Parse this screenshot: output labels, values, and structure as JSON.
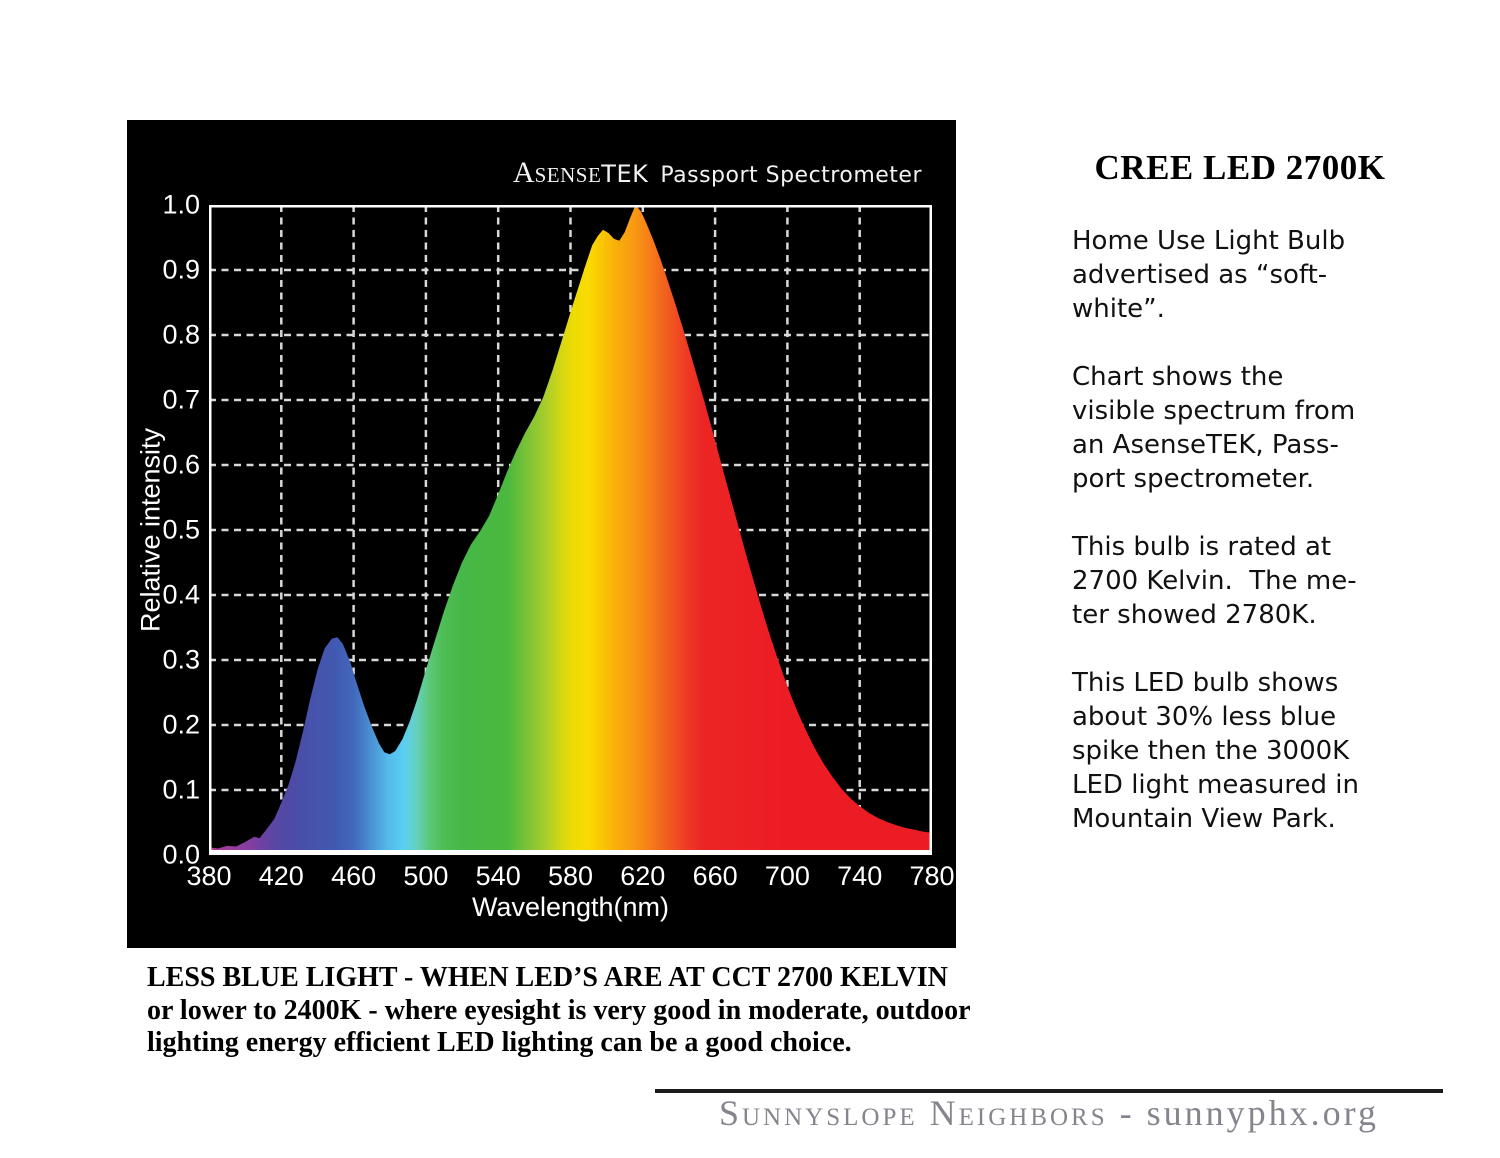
{
  "page": {
    "background": "#ffffff"
  },
  "chart": {
    "panel_bg": "#000000",
    "title": {
      "brand_initial": "A",
      "brand_smallcaps": "SENSE",
      "brand_suffix": "TEK",
      "product": "Passport Spectrometer"
    },
    "axes": {
      "ylabel": "Relative intensity",
      "xlabel": "Wavelength(nm)",
      "y_ticks": [
        "1.0",
        "0.9",
        "0.8",
        "0.7",
        "0.6",
        "0.5",
        "0.4",
        "0.3",
        "0.2",
        "0.1",
        "0.0"
      ],
      "x_ticks": [
        "380",
        "420",
        "460",
        "500",
        "540",
        "580",
        "620",
        "660",
        "700",
        "740",
        "780"
      ]
    }
  },
  "chart_data": {
    "type": "area",
    "title": "AsenseTEK Passport Spectrometer",
    "xlabel": "Wavelength(nm)",
    "ylabel": "Relative intensity",
    "xlim": [
      380,
      780
    ],
    "ylim": [
      0,
      1.0
    ],
    "x_tick_interval": 40,
    "y_tick_interval": 0.1,
    "grid": "dashed, white on black, drawn behind series",
    "legend": "none",
    "annotations": {
      "blue_peak": "~450 nm at 0.34",
      "valley": "~477 nm at 0.16",
      "main_peak": "~616 nm at 1.00 (twin shoulder ~598 nm at 0.96)"
    },
    "series": [
      {
        "name": "CREE LED 2700K visible spectrum",
        "fill": "wavelength rainbow gradient",
        "x": [
          380,
          385,
          390,
          395,
          400,
          405,
          408,
          412,
          416,
          420,
          424,
          428,
          432,
          436,
          440,
          444,
          448,
          451,
          454,
          458,
          462,
          466,
          470,
          474,
          477,
          480,
          483,
          487,
          491,
          495,
          500,
          505,
          510,
          515,
          520,
          525,
          530,
          535,
          540,
          545,
          550,
          555,
          560,
          565,
          570,
          575,
          580,
          584,
          588,
          592,
          595,
          598,
          601,
          604,
          607,
          610,
          613,
          616,
          619,
          622,
          626,
          630,
          634,
          638,
          642,
          646,
          650,
          654,
          658,
          662,
          666,
          670,
          674,
          678,
          682,
          686,
          690,
          694,
          698,
          702,
          706,
          710,
          715,
          720,
          725,
          730,
          735,
          740,
          745,
          750,
          755,
          760,
          765,
          770,
          775,
          780
        ],
        "y": [
          0.012,
          0.01,
          0.014,
          0.013,
          0.02,
          0.028,
          0.026,
          0.04,
          0.055,
          0.08,
          0.108,
          0.145,
          0.19,
          0.24,
          0.285,
          0.318,
          0.333,
          0.335,
          0.325,
          0.298,
          0.262,
          0.228,
          0.198,
          0.172,
          0.158,
          0.155,
          0.16,
          0.178,
          0.205,
          0.238,
          0.285,
          0.33,
          0.375,
          0.415,
          0.45,
          0.478,
          0.498,
          0.522,
          0.555,
          0.59,
          0.622,
          0.65,
          0.675,
          0.705,
          0.745,
          0.79,
          0.835,
          0.87,
          0.905,
          0.938,
          0.952,
          0.962,
          0.957,
          0.948,
          0.945,
          0.958,
          0.98,
          1.0,
          0.99,
          0.972,
          0.945,
          0.915,
          0.882,
          0.848,
          0.812,
          0.775,
          0.737,
          0.698,
          0.658,
          0.617,
          0.576,
          0.535,
          0.494,
          0.454,
          0.415,
          0.377,
          0.341,
          0.307,
          0.275,
          0.245,
          0.218,
          0.193,
          0.165,
          0.141,
          0.12,
          0.102,
          0.087,
          0.075,
          0.065,
          0.057,
          0.051,
          0.046,
          0.042,
          0.039,
          0.036,
          0.034
        ]
      }
    ],
    "gradient_stops": [
      {
        "nm": 380,
        "color": "#b23a98"
      },
      {
        "nm": 392,
        "color": "#9c3b9c"
      },
      {
        "nm": 404,
        "color": "#7e3ea1"
      },
      {
        "nm": 414,
        "color": "#5f45a4"
      },
      {
        "nm": 424,
        "color": "#4e4aa6"
      },
      {
        "nm": 436,
        "color": "#4752ab"
      },
      {
        "nm": 450,
        "color": "#4159b1"
      },
      {
        "nm": 460,
        "color": "#4268bd"
      },
      {
        "nm": 470,
        "color": "#4b92d3"
      },
      {
        "nm": 479,
        "color": "#54b9ea"
      },
      {
        "nm": 488,
        "color": "#5acff2"
      },
      {
        "nm": 495,
        "color": "#65d0bd"
      },
      {
        "nm": 502,
        "color": "#5cc878"
      },
      {
        "nm": 509,
        "color": "#4fbe55"
      },
      {
        "nm": 520,
        "color": "#46b848"
      },
      {
        "nm": 545,
        "color": "#4ab83e"
      },
      {
        "nm": 557,
        "color": "#7fc436"
      },
      {
        "nm": 567,
        "color": "#abce29"
      },
      {
        "nm": 575,
        "color": "#d6d713"
      },
      {
        "nm": 582,
        "color": "#eedc03"
      },
      {
        "nm": 590,
        "color": "#f9da00"
      },
      {
        "nm": 598,
        "color": "#fac404"
      },
      {
        "nm": 606,
        "color": "#f9ad0b"
      },
      {
        "nm": 615,
        "color": "#f89a12"
      },
      {
        "nm": 624,
        "color": "#f67d1a"
      },
      {
        "nm": 634,
        "color": "#f15b20"
      },
      {
        "nm": 644,
        "color": "#ee3b23"
      },
      {
        "nm": 654,
        "color": "#ec2524"
      },
      {
        "nm": 700,
        "color": "#ec1c24"
      },
      {
        "nm": 780,
        "color": "#ec1c24"
      }
    ],
    "style": {
      "grid_color": "#d8d8d8",
      "border_color": "#ffffff",
      "background": "#000000"
    }
  },
  "sidebar": {
    "heading": "CREE LED 2700K",
    "paragraphs": [
      [
        "Home Use Light Bulb",
        "advertised as “soft-",
        "white”."
      ],
      [
        "Chart shows the",
        "visible spectrum from",
        "an AsenseTEK, Pass-",
        "port spectrometer."
      ],
      [
        "This bulb is rated at",
        "2700 Kelvin.  The me-",
        "ter showed 2780K."
      ],
      [
        "This LED bulb shows",
        "about 30% less blue",
        "spike then the 3000K",
        "LED light measured in",
        "Mountain View Park."
      ]
    ]
  },
  "caption": {
    "lines": [
      "LESS BLUE LIGHT - WHEN LED’S ARE AT CCT 2700 KELVIN",
      "or lower to 2400K - where eyesight is very good in moderate, outdoor",
      "lighting energy efficient LED lighting can be a good choice."
    ]
  },
  "footer": {
    "org": "Sunnyslope Neighbors",
    "separator": " - ",
    "site": "sunnyphx.org",
    "line_color": "#1b1b1b",
    "text_color": "#85858d"
  }
}
